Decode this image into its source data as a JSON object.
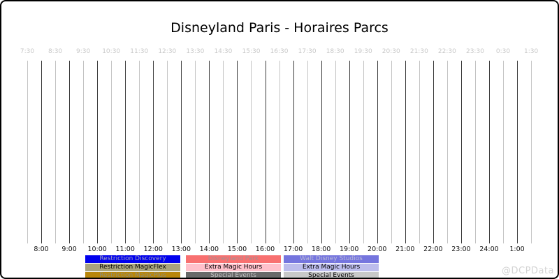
{
  "title": "Disneyland Paris - Horaires Parcs",
  "watermark": "@DCPData",
  "colors": {
    "background": "#ffffff",
    "border": "#000000",
    "grid_half_hour": "#c3c3c3",
    "grid_hour": "#3a3a3a",
    "top_tick_text": "#c8c8c8",
    "bottom_tick_text": "#141414",
    "title_text": "#000000",
    "watermark_text": "#d4d4d4"
  },
  "chart_data": {
    "type": "bar",
    "title": "Disneyland Paris - Horaires Parcs",
    "xlabel": "",
    "ylabel": "",
    "grid": true,
    "legend_position": "bottom",
    "x_axis": {
      "unit": "time-of-day",
      "start": "7:30",
      "end": "1:30",
      "tick_interval_minutes": 30,
      "top_labels": [
        "7:30",
        "8:30",
        "9:30",
        "10:30",
        "11:30",
        "12:30",
        "13:30",
        "14:30",
        "15:30",
        "16:30",
        "17:30",
        "18:30",
        "19:30",
        "20:30",
        "21:30",
        "22:30",
        "23:30",
        "0:30",
        "1:30"
      ],
      "bottom_labels": [
        "8:00",
        "9:00",
        "10:00",
        "11:00",
        "12:00",
        "13:00",
        "14:00",
        "15:00",
        "16:00",
        "17:00",
        "18:00",
        "19:00",
        "20:00",
        "21:00",
        "22:00",
        "23:00",
        "24:00",
        "1:00"
      ]
    },
    "series": [],
    "note": "timeline grid is empty - no park-hours bars are drawn in the plot area",
    "legend_columns": [
      {
        "items": [
          {
            "label": "Restriction Discovery",
            "bg": "#0000ee",
            "fg": "#a8a8bc"
          },
          {
            "label": "Restriction MagicFlex",
            "bg": "#a9a47d",
            "fg": "#000000"
          },
          {
            "label": "Restriction MagicPlus",
            "bg": "#b8860b",
            "fg": "#8c8c7a"
          }
        ]
      },
      {
        "items": [
          {
            "label": "Disneyland Park",
            "bg": "#f87070",
            "fg": "#a39292"
          },
          {
            "label": "Extra Magic Hours",
            "bg": "#ffc0cb",
            "fg": "#000000"
          },
          {
            "label": "Special Events",
            "bg": "#696969",
            "fg": "#c0c0c0"
          }
        ]
      },
      {
        "items": [
          {
            "label": "Walt Disney Studios",
            "bg": "#7575de",
            "fg": "#bcbcd8"
          },
          {
            "label": "Extra Magic Hours",
            "bg": "#bcbcec",
            "fg": "#000000"
          },
          {
            "label": "Special Events",
            "bg": "#c8c8c8",
            "fg": "#000000"
          }
        ]
      }
    ]
  }
}
